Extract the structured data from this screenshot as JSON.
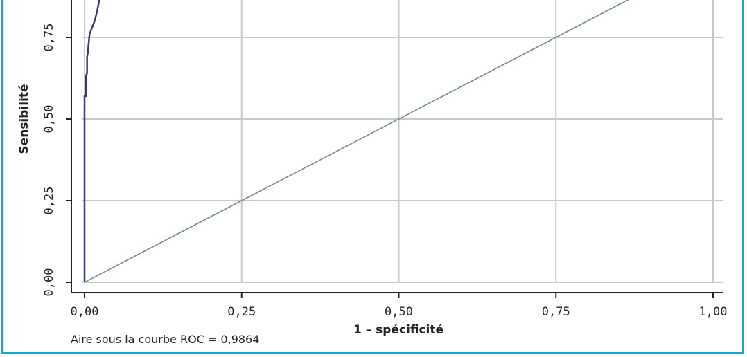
{
  "chart_data": {
    "type": "line",
    "xlabel": "1 – spécificité",
    "ylabel": "Sensibilité",
    "xlim": [
      0,
      1
    ],
    "ylim": [
      0,
      1
    ],
    "x_ticks": [
      "0,00",
      "0,25",
      "0,50",
      "0,75",
      "1,00"
    ],
    "y_ticks": [
      "0,00",
      "0,25",
      "0,50",
      "0,75"
    ],
    "x_tick_values": [
      0,
      0.25,
      0.5,
      0.75,
      1.0
    ],
    "y_tick_values": [
      0,
      0.25,
      0.5,
      0.75
    ],
    "grid": true,
    "series": [
      {
        "kind": "roc",
        "color": "#3a3a66",
        "x": [
          0,
          0,
          0.002,
          0.002,
          0.004,
          0.004,
          0.005,
          0.006,
          0.008,
          0.012,
          0.016,
          0.02,
          0.023,
          0.026
        ],
        "y": [
          0,
          0.57,
          0.57,
          0.63,
          0.64,
          0.69,
          0.7,
          0.72,
          0.76,
          0.78,
          0.8,
          0.83,
          0.86,
          0.88
        ]
      },
      {
        "kind": "reference",
        "color": "#6f8c8a",
        "x": [
          0,
          1
        ],
        "y": [
          0,
          1
        ]
      }
    ],
    "annotation": "Aire sous la courbe ROC = 0,9864"
  },
  "colors": {
    "border": "#1aa1d8",
    "grid": "#c8c8c8",
    "axis": "#222222"
  }
}
